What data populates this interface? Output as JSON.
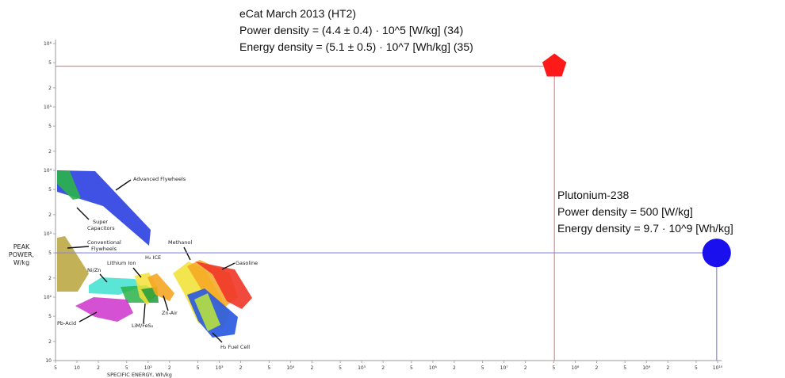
{
  "chart_data": {
    "type": "scatter",
    "xlabel": "SPECIFIC ENERGY, Wh/kg",
    "ylabel": [
      "PEAK",
      "POWER,",
      "W/kg"
    ],
    "xscale": "log",
    "yscale": "log",
    "xlim": [
      5,
      10000000000
    ],
    "ylim": [
      10,
      1000000
    ],
    "x_tick_labels": [
      "5",
      "10",
      "2",
      "5",
      "10²",
      "2",
      "5",
      "10³",
      "2",
      "5",
      "10⁴",
      "2",
      "5",
      "10⁵",
      "2",
      "5",
      "10⁶",
      "2",
      "5",
      "10⁷",
      "2",
      "5",
      "10⁸",
      "2",
      "5",
      "10⁹",
      "2",
      "5",
      "10¹⁰"
    ],
    "y_tick_labels": [
      "10",
      "2",
      "5",
      "10²",
      "2",
      "5",
      "10³",
      "2",
      "5",
      "10⁴",
      "2",
      "5",
      "10⁵",
      "2",
      "5",
      "10⁶"
    ],
    "points": [
      {
        "name": "eCat March 2013 (HT2)",
        "x": 51000000,
        "y": 440000,
        "color": "#ff1a1a",
        "marker": "pentagon",
        "lines": [
          "eCat March 2013 (HT2)",
          "Power density = (4.4 ± 0.4) · 10^5  [W/kg] (34)",
          "Energy density = (5.1 ± 0.5) · 10^7 [Wh/kg] (35)"
        ]
      },
      {
        "name": "Plutonium-238",
        "x": 9700000000,
        "y": 500,
        "color": "#1a10ee",
        "marker": "circle",
        "lines": [
          "Plutonium-238",
          "Power density = 500  [W/kg]",
          "Energy density =  9.7 · 10^9 [Wh/kg]"
        ]
      }
    ],
    "regions": [
      {
        "name": "Advanced Flywheels",
        "label": "Advanced Flywheels",
        "color": "#2b3fe0"
      },
      {
        "name": "Super Capacitors",
        "label": "Super Capacitors",
        "color": "#2bb34a"
      },
      {
        "name": "Conventional Flywheels",
        "label": "Conventional Flywheels",
        "color": "#b8a33a"
      },
      {
        "name": "Ni/Zn",
        "label": "Ni/Zn",
        "color": "#3de0d0"
      },
      {
        "name": "Lithium Ion",
        "label": "Lithium Ion",
        "color": "#2bb34a"
      },
      {
        "name": "Pb-Acid",
        "label": "Pb-Acid",
        "color": "#cc33cc"
      },
      {
        "name": "LiM/FeS2",
        "label": "LiM/FeS₂",
        "color": "#1f9a3a"
      },
      {
        "name": "H2 ICE",
        "label": "H₂ ICE",
        "color": "#f2e23a"
      },
      {
        "name": "Zn-Air",
        "label": "Zn-Air",
        "color": "#f5a623"
      },
      {
        "name": "Methanol",
        "label": "Methanol",
        "color": "#f2e23a"
      },
      {
        "name": "Gasoline",
        "label": "Gasoline",
        "color": "#f03a2a"
      },
      {
        "name": "H2 Fuel Cell",
        "label": "H₂ Fuel Cell",
        "color": "#2b5ae0"
      }
    ],
    "colors": {
      "ecat_line": "#e08a8a",
      "pu_line": "#8a86e0",
      "axis": "#999999",
      "flywheel_adv": "#2b3fe0",
      "supercap": "#2bb34a",
      "conv_flywheel": "#b8a33a",
      "nizn": "#3de0d0",
      "pbacid": "#cc33cc",
      "green": "#2bb34a",
      "yellow": "#f2e23a",
      "orange": "#f5a623",
      "red": "#f03a2a",
      "blue": "#2b5ae0"
    }
  }
}
